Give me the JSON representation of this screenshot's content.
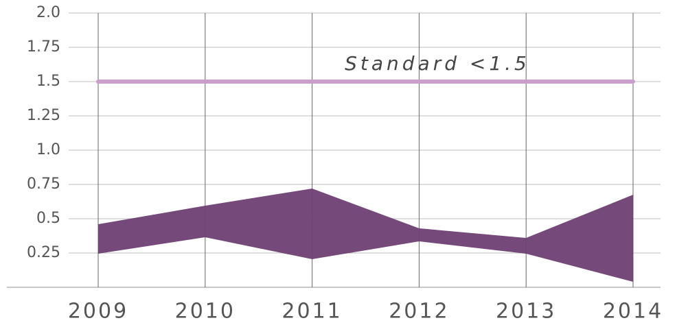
{
  "chart_data": {
    "type": "range_area",
    "categories": [
      "2009",
      "2010",
      "2011",
      "2012",
      "2013",
      "2014"
    ],
    "series": [
      {
        "color": "#6e3f72",
        "values": [
          0.245,
          0.365,
          0.205,
          0.335,
          0.245,
          0.04
        ]
      },
      {
        "color": "#6e3f72",
        "values": [
          0.46,
          0.595,
          0.72,
          0.43,
          0.36,
          0.675
        ]
      }
    ],
    "ylim": [
      0,
      2
    ],
    "yticks": [
      0.25,
      0.5,
      0.75,
      {
        "value": 1,
        "label": "1.0"
      },
      1.25,
      1.5,
      1.75,
      {
        "value": 2,
        "label": "2.0"
      }
    ],
    "grid": true,
    "reference_line": {
      "value": 1.5,
      "label": "Standard <1.5",
      "color": "#c9a0cc"
    }
  }
}
